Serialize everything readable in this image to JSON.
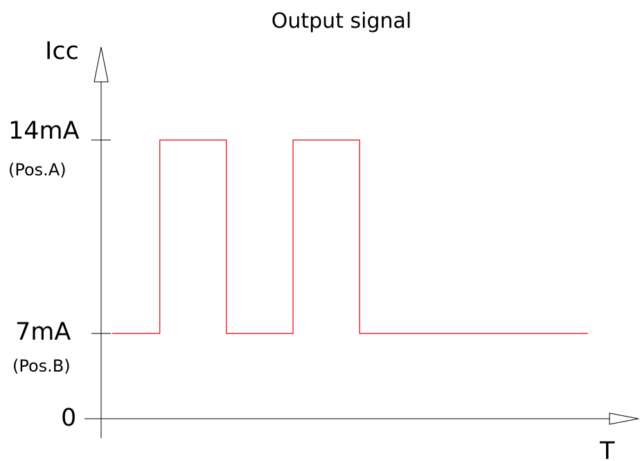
{
  "chart_data": {
    "type": "line",
    "title": "Output signal",
    "ylabel": "Icc",
    "xlabel": "T",
    "ticks": [
      {
        "value": 14,
        "label": "14mA",
        "sublabel": "(Pos.A)"
      },
      {
        "value": 7,
        "label": "7mA",
        "sublabel": "(Pos.B)"
      },
      {
        "value": 0,
        "label": "0",
        "sublabel": ""
      }
    ],
    "ylim": [
      0,
      20
    ],
    "xlim": [
      0,
      10
    ],
    "series": [
      {
        "color": "#e8000b",
        "step": true,
        "x": [
          0,
          1,
          2.4,
          3.8,
          5.2,
          6.6,
          7.6
        ],
        "y": [
          7,
          14,
          7,
          14,
          7,
          7,
          7
        ]
      }
    ],
    "grid": false
  }
}
